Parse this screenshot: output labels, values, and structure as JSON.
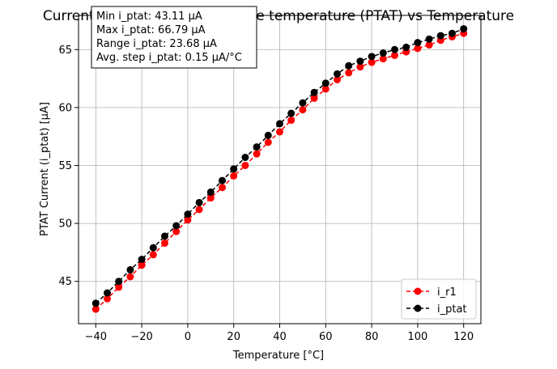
{
  "chart_data": {
    "type": "line",
    "title": "Current proportional to absolute temperature (PTAT) vs Temperature",
    "xlabel": "Temperature [°C]",
    "ylabel": "PTAT Current (i_ptat) [µA]",
    "xlim": [
      -47.5,
      127.5
    ],
    "ylim": [
      41.35,
      67.95
    ],
    "xticks": [
      -40,
      -20,
      0,
      20,
      40,
      60,
      80,
      100,
      120
    ],
    "yticks": [
      45,
      50,
      55,
      60,
      65
    ],
    "grid": true,
    "legend_position": "lower-right",
    "x": [
      -40,
      -35,
      -30,
      -25,
      -20,
      -15,
      -10,
      -5,
      0,
      5,
      10,
      15,
      20,
      25,
      30,
      35,
      40,
      45,
      50,
      55,
      60,
      65,
      70,
      75,
      80,
      85,
      90,
      95,
      100,
      105,
      110,
      115,
      120
    ],
    "series": [
      {
        "name": "i_r1",
        "color": "#ff0000",
        "linestyle": "dashed",
        "marker": "circle",
        "values": [
          42.6,
          43.5,
          44.5,
          45.4,
          46.4,
          47.3,
          48.3,
          49.3,
          50.3,
          51.2,
          52.2,
          53.1,
          54.1,
          55.0,
          56.0,
          57.0,
          57.9,
          58.9,
          59.8,
          60.8,
          61.6,
          62.4,
          63.0,
          63.5,
          63.9,
          64.2,
          64.5,
          64.8,
          65.1,
          65.4,
          65.8,
          66.1,
          66.4
        ]
      },
      {
        "name": "i_ptat",
        "color": "#000000",
        "linestyle": "dashed",
        "marker": "circle",
        "values": [
          43.11,
          44.0,
          45.0,
          46.0,
          46.9,
          47.9,
          48.9,
          49.8,
          50.8,
          51.8,
          52.7,
          53.7,
          54.7,
          55.7,
          56.6,
          57.6,
          58.6,
          59.5,
          60.4,
          61.3,
          62.1,
          62.9,
          63.6,
          64.0,
          64.4,
          64.7,
          65.0,
          65.2,
          65.6,
          65.9,
          66.2,
          66.4,
          66.79
        ]
      }
    ],
    "annotation_box": [
      "Min i_ptat: 43.11 µA",
      "Max i_ptat: 66.79 µA",
      "Range i_ptat: 23.68 µA",
      "Avg. step i_ptat: 0.15 µA/°C"
    ]
  }
}
